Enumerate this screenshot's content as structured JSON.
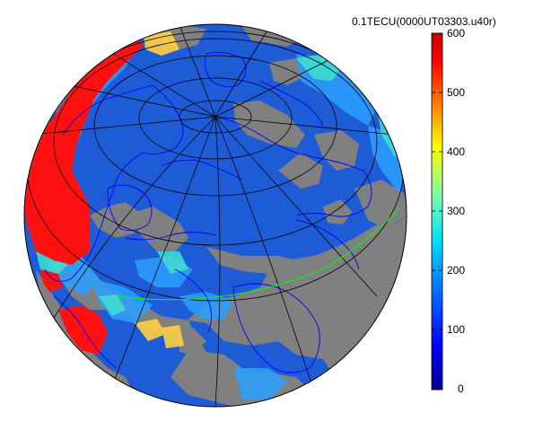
{
  "colorbar": {
    "title": "0.1TECU(0000UT03303.u40r)",
    "ticks": [
      "600",
      "500",
      "400",
      "300",
      "200",
      "100",
      "0"
    ],
    "colormap": [
      "#00008f",
      "#0000ff",
      "#0080ff",
      "#00ffff",
      "#80ff80",
      "#ffff00",
      "#ff8000",
      "#ff0000",
      "#800000"
    ]
  },
  "map": {
    "projection": "orthographic",
    "no_data_color": "#808080",
    "ocean_background": "#1e5bd6",
    "coastline_color": "#0000ff",
    "grid_color": "#000000",
    "highlight_line_color": "#00ff00"
  }
}
